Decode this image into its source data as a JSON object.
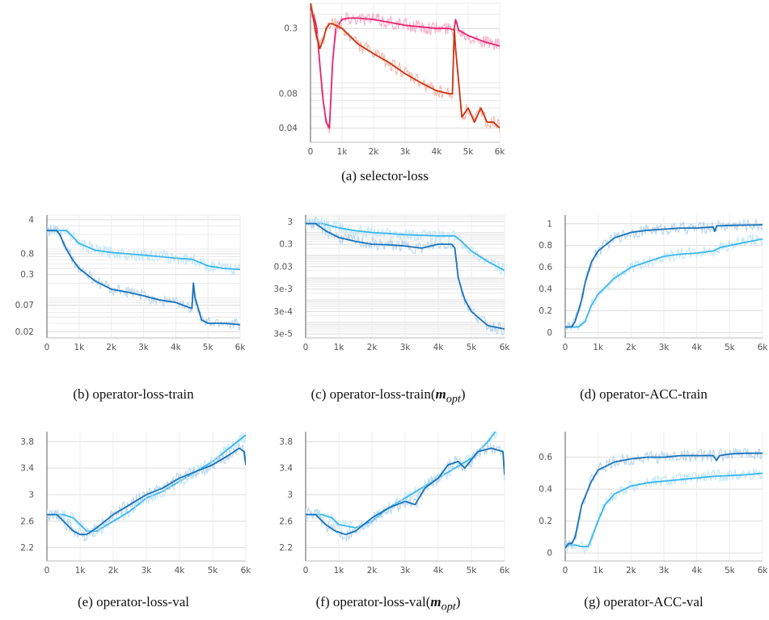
{
  "chart_data": [
    {
      "id": "a",
      "type": "line",
      "caption": "(a) selector-loss",
      "xlim": [
        0,
        6000
      ],
      "xticks": [
        0,
        1000,
        2000,
        3000,
        4000,
        5000,
        6000
      ],
      "xtick_labels": [
        "0",
        "1k",
        "2k",
        "3k",
        "4k",
        "5k",
        "6k"
      ],
      "yscale": "log",
      "ylim": [
        0.03,
        0.5
      ],
      "yticks": [
        0.04,
        0.08,
        0.3
      ],
      "ytick_labels": [
        "0.04",
        "0.08",
        "0.3"
      ],
      "series": [
        {
          "color": "#e8236e",
          "shade": "#f7a9c6",
          "x": [
            0,
            100,
            200,
            300,
            400,
            500,
            600,
            700,
            800,
            1000,
            1200,
            1500,
            2000,
            2500,
            3000,
            3500,
            4000,
            4400,
            4550,
            4600,
            4700,
            5000,
            5500,
            6000
          ],
          "y": [
            0.45,
            0.4,
            0.3,
            0.14,
            0.07,
            0.045,
            0.04,
            0.15,
            0.3,
            0.36,
            0.37,
            0.37,
            0.36,
            0.34,
            0.32,
            0.31,
            0.3,
            0.3,
            0.29,
            0.36,
            0.29,
            0.26,
            0.23,
            0.21
          ]
        },
        {
          "color": "#cc3311",
          "shade": "#f2b4a3",
          "x": [
            0,
            100,
            200,
            300,
            400,
            500,
            600,
            700,
            800,
            1000,
            1500,
            2000,
            2500,
            3000,
            3500,
            4000,
            4400,
            4500,
            4560,
            4600,
            4700,
            4800,
            5000,
            5200,
            5400,
            5600,
            5800,
            6000
          ],
          "y": [
            0.5,
            0.35,
            0.25,
            0.2,
            0.24,
            0.3,
            0.33,
            0.33,
            0.32,
            0.3,
            0.22,
            0.18,
            0.15,
            0.12,
            0.1,
            0.085,
            0.08,
            0.08,
            0.3,
            0.2,
            0.1,
            0.05,
            0.06,
            0.045,
            0.06,
            0.045,
            0.045,
            0.04
          ]
        }
      ]
    },
    {
      "id": "b",
      "type": "line",
      "caption": "(b) operator-loss-train",
      "xlim": [
        0,
        6000
      ],
      "xticks": [
        0,
        1000,
        2000,
        3000,
        4000,
        5000,
        6000
      ],
      "xtick_labels": [
        "0",
        "1k",
        "2k",
        "3k",
        "4k",
        "5k",
        "6k"
      ],
      "yscale": "log",
      "ylim": [
        0.015,
        5
      ],
      "yticks": [
        0.02,
        0.07,
        0.3,
        0.8,
        4
      ],
      "ytick_labels": [
        "0.02",
        "0.07",
        "0.3",
        "0.8",
        "4"
      ],
      "series": [
        {
          "color": "#3bb7ee",
          "shade": "#bfe7fa",
          "x": [
            0,
            600,
            800,
            1000,
            1500,
            2000,
            2500,
            3000,
            3500,
            4000,
            4500,
            4700,
            5000,
            5500,
            6000
          ],
          "y": [
            2.4,
            2.4,
            1.8,
            1.3,
            0.95,
            0.85,
            0.8,
            0.75,
            0.7,
            0.65,
            0.62,
            0.55,
            0.45,
            0.4,
            0.38
          ]
        },
        {
          "color": "#1a72b8",
          "shade": "#b5d4ec",
          "x": [
            0,
            300,
            400,
            600,
            800,
            1000,
            1500,
            2000,
            2500,
            3000,
            3500,
            4000,
            4500,
            4550,
            4600,
            4700,
            4800,
            5000,
            5500,
            6000
          ],
          "y": [
            2.4,
            2.4,
            2.0,
            1.0,
            0.6,
            0.4,
            0.22,
            0.15,
            0.13,
            0.11,
            0.09,
            0.08,
            0.06,
            0.2,
            0.1,
            0.06,
            0.035,
            0.03,
            0.03,
            0.028
          ]
        }
      ]
    },
    {
      "id": "c",
      "type": "line",
      "caption": "(c) operator-loss-train(m_opt)",
      "xlim": [
        0,
        6000
      ],
      "xticks": [
        0,
        1000,
        2000,
        3000,
        4000,
        5000,
        6000
      ],
      "xtick_labels": [
        "0",
        "1k",
        "2k",
        "3k",
        "4k",
        "5k",
        "6k"
      ],
      "yscale": "log",
      "ylim": [
        2e-05,
        6
      ],
      "yticks": [
        3e-05,
        0.0003,
        0.003,
        0.03,
        0.3,
        3
      ],
      "ytick_labels": [
        "3e-5",
        "3e-4",
        "3e-3",
        "0.03",
        "0.3",
        "3"
      ],
      "series": [
        {
          "color": "#3bb7ee",
          "shade": "#bfe7fa",
          "x": [
            0,
            500,
            1000,
            1500,
            2000,
            2500,
            3000,
            3500,
            4000,
            4500,
            4700,
            5000,
            5500,
            6000
          ],
          "y": [
            2.5,
            2.5,
            1.6,
            1.2,
            1.0,
            0.9,
            0.8,
            0.75,
            0.7,
            0.7,
            0.4,
            0.15,
            0.05,
            0.02
          ]
        },
        {
          "color": "#1a72b8",
          "shade": "#b5d4ec",
          "x": [
            0,
            300,
            600,
            1000,
            1500,
            2000,
            2500,
            3000,
            3500,
            4000,
            4400,
            4500,
            4600,
            4700,
            4800,
            5000,
            5500,
            6000
          ],
          "y": [
            2.5,
            2.5,
            1.2,
            0.6,
            0.4,
            0.3,
            0.28,
            0.25,
            0.2,
            0.3,
            0.3,
            0.2,
            0.01,
            0.003,
            0.001,
            0.0003,
            7e-05,
            5e-05
          ]
        }
      ]
    },
    {
      "id": "d",
      "type": "line",
      "caption": "(d) operator-ACC-train",
      "xlim": [
        0,
        6000
      ],
      "xticks": [
        0,
        1000,
        2000,
        3000,
        4000,
        5000,
        6000
      ],
      "xtick_labels": [
        "0",
        "1k",
        "2k",
        "3k",
        "4k",
        "5k",
        "6k"
      ],
      "yscale": "linear",
      "ylim": [
        -0.05,
        1.08
      ],
      "yticks": [
        0,
        0.2,
        0.4,
        0.6,
        0.8,
        1
      ],
      "ytick_labels": [
        "0",
        "0.2",
        "0.4",
        "0.6",
        "0.8",
        "1"
      ],
      "series": [
        {
          "color": "#3bb7ee",
          "shade": "#bfe7fa",
          "x": [
            0,
            400,
            600,
            800,
            1000,
            1500,
            2000,
            2500,
            3000,
            3500,
            4000,
            4500,
            4700,
            5000,
            5500,
            6000
          ],
          "y": [
            0.05,
            0.05,
            0.1,
            0.25,
            0.35,
            0.5,
            0.6,
            0.65,
            0.7,
            0.72,
            0.73,
            0.75,
            0.78,
            0.8,
            0.83,
            0.86
          ]
        },
        {
          "color": "#1a72b8",
          "shade": "#b5d4ec",
          "x": [
            0,
            200,
            300,
            400,
            500,
            600,
            800,
            1000,
            1500,
            2000,
            2500,
            3000,
            3500,
            4000,
            4500,
            4550,
            4600,
            5000,
            6000
          ],
          "y": [
            0.05,
            0.05,
            0.1,
            0.2,
            0.3,
            0.45,
            0.65,
            0.75,
            0.87,
            0.92,
            0.94,
            0.95,
            0.96,
            0.96,
            0.97,
            0.93,
            0.98,
            0.985,
            0.99
          ]
        }
      ]
    },
    {
      "id": "e",
      "type": "line",
      "caption": "(e) operator-loss-val",
      "xlim": [
        0,
        6000
      ],
      "xticks": [
        0,
        1000,
        2000,
        3000,
        4000,
        5000,
        6000
      ],
      "xtick_labels": [
        "0",
        "1k",
        "2k",
        "3k",
        "4k",
        "5k",
        "6k"
      ],
      "yscale": "linear",
      "ylim": [
        2.0,
        3.95
      ],
      "yticks": [
        2.2,
        2.6,
        3,
        3.4,
        3.8
      ],
      "ytick_labels": [
        "2.2",
        "2.6",
        "3",
        "3.4",
        "3.8"
      ],
      "series": [
        {
          "color": "#3bb7ee",
          "shade": "#bfe7fa",
          "x": [
            0,
            500,
            800,
            1000,
            1200,
            1500,
            2000,
            2500,
            3000,
            3500,
            4000,
            4500,
            5000,
            5500,
            6000
          ],
          "y": [
            2.7,
            2.7,
            2.65,
            2.55,
            2.45,
            2.45,
            2.6,
            2.75,
            2.95,
            3.05,
            3.2,
            3.35,
            3.5,
            3.7,
            3.9
          ]
        },
        {
          "color": "#1a72b8",
          "shade": "#b5d4ec",
          "x": [
            0,
            300,
            500,
            800,
            1000,
            1200,
            1500,
            2000,
            2500,
            3000,
            3500,
            4000,
            4500,
            5000,
            5500,
            5800,
            5950,
            6000
          ],
          "y": [
            2.7,
            2.7,
            2.6,
            2.45,
            2.4,
            2.4,
            2.5,
            2.7,
            2.85,
            3.0,
            3.1,
            3.25,
            3.35,
            3.45,
            3.6,
            3.7,
            3.65,
            3.45
          ]
        }
      ]
    },
    {
      "id": "f",
      "type": "line",
      "caption": "(f) operator-loss-val(m_opt)",
      "xlim": [
        0,
        6000
      ],
      "xticks": [
        0,
        1000,
        2000,
        3000,
        4000,
        5000,
        6000
      ],
      "xtick_labels": [
        "0",
        "1k",
        "2k",
        "3k",
        "4k",
        "5k",
        "6k"
      ],
      "yscale": "linear",
      "ylim": [
        2.0,
        3.95
      ],
      "yticks": [
        2.2,
        2.6,
        3,
        3.4,
        3.8
      ],
      "ytick_labels": [
        "2.2",
        "2.6",
        "3",
        "3.4",
        "3.8"
      ],
      "series": [
        {
          "color": "#3bb7ee",
          "shade": "#bfe7fa",
          "x": [
            0,
            500,
            800,
            1000,
            1500,
            2000,
            2500,
            3000,
            3500,
            4000,
            4500,
            5000,
            5500,
            5800
          ],
          "y": [
            2.7,
            2.7,
            2.65,
            2.55,
            2.5,
            2.6,
            2.8,
            2.95,
            3.1,
            3.25,
            3.4,
            3.55,
            3.8,
            4.0
          ]
        },
        {
          "color": "#1a72b8",
          "shade": "#b5d4ec",
          "x": [
            0,
            300,
            600,
            900,
            1200,
            1500,
            2000,
            2500,
            3000,
            3300,
            3600,
            4000,
            4300,
            4600,
            4800,
            5200,
            5600,
            5950,
            6000
          ],
          "y": [
            2.7,
            2.7,
            2.55,
            2.45,
            2.4,
            2.45,
            2.65,
            2.8,
            2.9,
            2.85,
            3.1,
            3.25,
            3.45,
            3.5,
            3.4,
            3.65,
            3.7,
            3.65,
            3.3
          ]
        }
      ]
    },
    {
      "id": "g",
      "type": "line",
      "caption": "(g) operator-ACC-val",
      "xlim": [
        0,
        6000
      ],
      "xticks": [
        0,
        1000,
        2000,
        3000,
        4000,
        5000,
        6000
      ],
      "xtick_labels": [
        "0",
        "1k",
        "2k",
        "3k",
        "4k",
        "5k",
        "6k"
      ],
      "yscale": "linear",
      "ylim": [
        -0.05,
        0.76
      ],
      "yticks": [
        0,
        0.2,
        0.4,
        0.6
      ],
      "ytick_labels": [
        "0",
        "0.2",
        "0.4",
        "0.6"
      ],
      "series": [
        {
          "color": "#3bb7ee",
          "shade": "#bfe7fa",
          "x": [
            0,
            300,
            500,
            700,
            1000,
            1200,
            1500,
            2000,
            2500,
            3000,
            3500,
            4000,
            4500,
            5000,
            5500,
            6000
          ],
          "y": [
            0.05,
            0.05,
            0.04,
            0.04,
            0.2,
            0.3,
            0.37,
            0.42,
            0.44,
            0.45,
            0.46,
            0.47,
            0.48,
            0.485,
            0.49,
            0.5
          ]
        },
        {
          "color": "#1a72b8",
          "shade": "#b5d4ec",
          "x": [
            0,
            100,
            200,
            300,
            500,
            800,
            1000,
            1500,
            2000,
            2500,
            3000,
            3500,
            4000,
            4500,
            4600,
            4700,
            5000,
            5500,
            6000
          ],
          "y": [
            0.03,
            0.06,
            0.06,
            0.1,
            0.3,
            0.45,
            0.52,
            0.57,
            0.59,
            0.6,
            0.6,
            0.61,
            0.61,
            0.61,
            0.58,
            0.61,
            0.62,
            0.625,
            0.625
          ]
        }
      ]
    }
  ],
  "captions": {
    "a": {
      "text": "(a) selector-loss"
    },
    "b": {
      "text": "(b) operator-loss-train"
    },
    "c": {
      "prefix": "(c) operator-loss-train(",
      "var": "m",
      "sub": "opt",
      "suffix": ")"
    },
    "d": {
      "text": "(d) operator-ACC-train"
    },
    "e": {
      "text": "(e) operator-loss-val"
    },
    "f": {
      "prefix": "(f) operator-loss-val(",
      "var": "m",
      "sub": "opt",
      "suffix": ")"
    },
    "g": {
      "text": "(g) operator-ACC-val"
    }
  }
}
